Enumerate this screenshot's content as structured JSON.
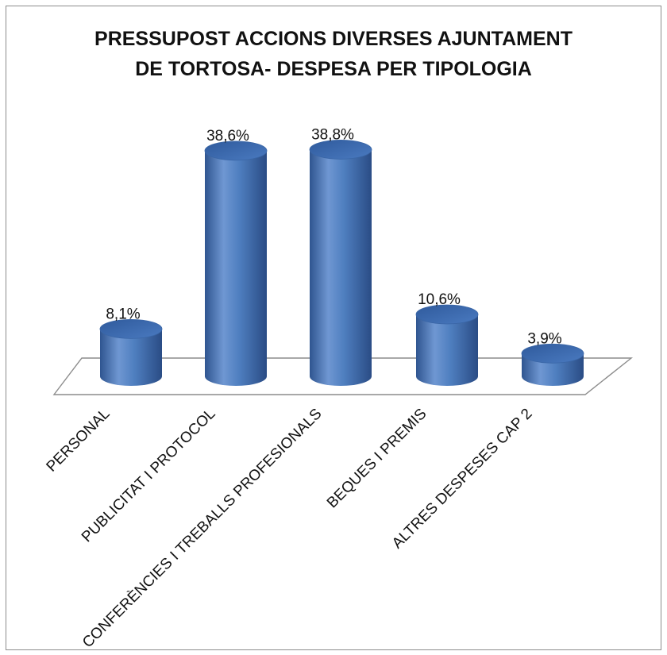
{
  "chart_data": {
    "type": "bar",
    "style": "3d-cylinder",
    "title_lines": [
      "PRESSUPOST ACCIONS DIVERSES AJUNTAMENT",
      "DE TORTOSA- DESPESA PER TIPOLOGIA"
    ],
    "categories": [
      "PERSONAL",
      "PUBLICITAT I PROTOCOL",
      "CONFERÈNCIES I TREBALLS PROFESIONALS",
      "BEQUES I PREMIS",
      "ALTRES DESPESES CAP 2"
    ],
    "values": [
      8.1,
      38.6,
      38.8,
      10.6,
      3.9
    ],
    "data_labels": [
      "8,1%",
      "38,6%",
      "38,8%",
      "10,6%",
      "3,9%"
    ],
    "unit": "%",
    "ylim": [
      0,
      40
    ],
    "grid": false,
    "legend": "none",
    "colors": {
      "bar_main": "#4f81bd",
      "bar_light": "#8fb1e0",
      "bar_dark": "#2c4f86",
      "top_fill": "#3d6cb0",
      "floor_stroke": "#8c8c8c"
    }
  }
}
